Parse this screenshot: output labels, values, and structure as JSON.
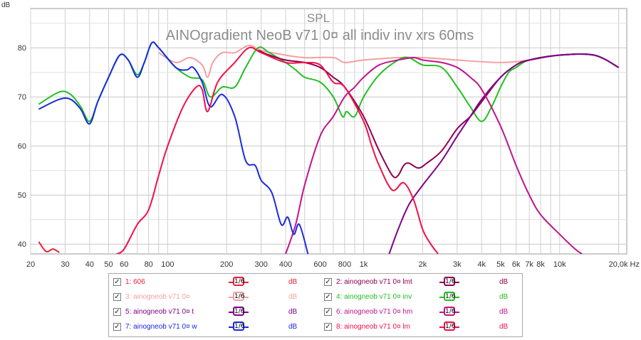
{
  "chart_data": {
    "type": "line",
    "title": "SPL",
    "subtitle": "AINOgradient NeoB v71 0¤ all indiv inv xrs 60ms",
    "ylabel": "dB",
    "xlabel": "Hz",
    "x_scale": "log",
    "xlim": [
      20,
      22000
    ],
    "ylim": [
      38,
      88
    ],
    "y_ticks": [
      40,
      50,
      60,
      70,
      80
    ],
    "x_ticks": [
      {
        "v": 20,
        "label": "20"
      },
      {
        "v": 30,
        "label": "30"
      },
      {
        "v": 40,
        "label": "40"
      },
      {
        "v": 50,
        "label": "50"
      },
      {
        "v": 60,
        "label": "60"
      },
      {
        "v": 80,
        "label": "80"
      },
      {
        "v": 100,
        "label": "100"
      },
      {
        "v": 200,
        "label": "200"
      },
      {
        "v": 300,
        "label": "300"
      },
      {
        "v": 400,
        "label": "400"
      },
      {
        "v": 600,
        "label": "600"
      },
      {
        "v": 800,
        "label": "800"
      },
      {
        "v": 1000,
        "label": "1k"
      },
      {
        "v": 2000,
        "label": "2k"
      },
      {
        "v": 3000,
        "label": "3k"
      },
      {
        "v": 4000,
        "label": "4k"
      },
      {
        "v": 5000,
        "label": "5k"
      },
      {
        "v": 6000,
        "label": "6k"
      },
      {
        "v": 7000,
        "label": "7k"
      },
      {
        "v": 8000,
        "label": "8k"
      },
      {
        "v": 10000,
        "label": "10k"
      },
      {
        "v": 20000,
        "label": "20,0k Hz"
      }
    ],
    "grid": true,
    "series": [
      {
        "name": "3: ainogneob v71 0¤",
        "color": "#f4a0a0",
        "points": [
          [
            90,
            79
          ],
          [
            110,
            77
          ],
          [
            130,
            78
          ],
          [
            150,
            76.5
          ],
          [
            160,
            74
          ],
          [
            170,
            77
          ],
          [
            190,
            79
          ],
          [
            220,
            79
          ],
          [
            260,
            80.5
          ],
          [
            300,
            79.5
          ],
          [
            400,
            78.5
          ],
          [
            500,
            78
          ],
          [
            700,
            78
          ],
          [
            800,
            77
          ],
          [
            1000,
            77.5
          ],
          [
            1500,
            78
          ],
          [
            2000,
            78
          ],
          [
            3000,
            77.5
          ],
          [
            5000,
            77
          ],
          [
            7000,
            77.5
          ],
          [
            10000,
            78.5
          ],
          [
            15000,
            78.5
          ],
          [
            20000,
            76
          ]
        ]
      },
      {
        "name": "4: ainogneob v71 0¤ inv",
        "color": "#22c022",
        "points": [
          [
            22,
            68.5
          ],
          [
            28,
            71
          ],
          [
            32,
            70.5
          ],
          [
            36,
            68
          ],
          [
            40,
            65
          ],
          [
            44,
            69
          ],
          [
            50,
            74
          ],
          [
            57,
            78.5
          ],
          [
            63,
            77.5
          ],
          [
            70,
            74.5
          ],
          [
            76,
            77
          ],
          [
            83,
            81
          ],
          [
            90,
            80
          ],
          [
            110,
            76
          ],
          [
            130,
            74
          ],
          [
            150,
            73.5
          ],
          [
            165,
            70
          ],
          [
            190,
            72
          ],
          [
            220,
            72
          ],
          [
            250,
            76
          ],
          [
            290,
            80
          ],
          [
            330,
            79
          ],
          [
            400,
            77
          ],
          [
            450,
            75.5
          ],
          [
            500,
            74
          ],
          [
            600,
            73
          ],
          [
            700,
            70
          ],
          [
            780,
            66
          ],
          [
            820,
            67
          ],
          [
            900,
            66
          ],
          [
            1000,
            70
          ],
          [
            1200,
            74.5
          ],
          [
            1500,
            77.5
          ],
          [
            1700,
            78
          ],
          [
            2000,
            76.5
          ],
          [
            2500,
            76
          ],
          [
            3000,
            72
          ],
          [
            3500,
            68
          ],
          [
            4000,
            65
          ],
          [
            4500,
            68
          ],
          [
            5000,
            72
          ],
          [
            5500,
            75
          ],
          [
            6000,
            76
          ],
          [
            7000,
            77.5
          ],
          [
            10000,
            78.5
          ],
          [
            15000,
            78.5
          ],
          [
            20000,
            76
          ]
        ]
      },
      {
        "name": "2: ainogneob v71 0¤ lmt",
        "color": "#900050",
        "points": [
          [
            290,
            79.5
          ],
          [
            330,
            78.5
          ],
          [
            400,
            77.5
          ],
          [
            500,
            77
          ],
          [
            600,
            76
          ],
          [
            700,
            74
          ],
          [
            800,
            72
          ],
          [
            1000,
            66
          ],
          [
            1200,
            59
          ],
          [
            1400,
            54
          ],
          [
            1500,
            54
          ],
          [
            1600,
            56
          ],
          [
            1700,
            56.5
          ],
          [
            1900,
            55.5
          ],
          [
            2100,
            56.5
          ],
          [
            2500,
            59
          ],
          [
            3000,
            63.5
          ],
          [
            3500,
            66
          ],
          [
            4000,
            69
          ],
          [
            5000,
            74
          ],
          [
            6000,
            76.5
          ],
          [
            7000,
            77.5
          ],
          [
            10000,
            78.5
          ],
          [
            15000,
            78.5
          ],
          [
            20000,
            76
          ]
        ]
      },
      {
        "name": "5: ainogneob v71 0¤ t",
        "color": "#80008a",
        "points": [
          [
            1350,
            38
          ],
          [
            1500,
            43
          ],
          [
            1700,
            48
          ],
          [
            2000,
            52
          ],
          [
            2500,
            57
          ],
          [
            3000,
            62
          ],
          [
            3500,
            66
          ],
          [
            4000,
            69.5
          ],
          [
            5000,
            74
          ],
          [
            6000,
            76.5
          ],
          [
            7000,
            77.5
          ],
          [
            10000,
            78.5
          ],
          [
            15000,
            78.5
          ],
          [
            20000,
            76
          ]
        ]
      },
      {
        "name": "6: ainogneob v71 0¤ hm",
        "color": "#c0148a",
        "points": [
          [
            400,
            38
          ],
          [
            450,
            44
          ],
          [
            500,
            52
          ],
          [
            600,
            62
          ],
          [
            700,
            66
          ],
          [
            800,
            70
          ],
          [
            900,
            72
          ],
          [
            1000,
            74
          ],
          [
            1200,
            76.5
          ],
          [
            1500,
            77.5
          ],
          [
            1800,
            78
          ],
          [
            2000,
            77.5
          ],
          [
            2500,
            77
          ],
          [
            3000,
            76
          ],
          [
            3500,
            74
          ],
          [
            4000,
            71.5
          ],
          [
            5000,
            64
          ],
          [
            6000,
            56
          ],
          [
            7000,
            50
          ],
          [
            8000,
            46
          ],
          [
            10000,
            42
          ],
          [
            12000,
            39
          ],
          [
            13000,
            38
          ]
        ]
      },
      {
        "name": "7: ainogneob v71 0¤ w",
        "color": "#1a2ae0",
        "points": [
          [
            22,
            67.5
          ],
          [
            28,
            69.5
          ],
          [
            32,
            69.5
          ],
          [
            36,
            67.5
          ],
          [
            40,
            64.5
          ],
          [
            44,
            69
          ],
          [
            50,
            74
          ],
          [
            57,
            78.5
          ],
          [
            63,
            77.5
          ],
          [
            70,
            74
          ],
          [
            76,
            77
          ],
          [
            83,
            81
          ],
          [
            90,
            80
          ],
          [
            110,
            76
          ],
          [
            125,
            75.5
          ],
          [
            135,
            76
          ],
          [
            150,
            73
          ],
          [
            165,
            68
          ],
          [
            190,
            70.5
          ],
          [
            220,
            66
          ],
          [
            250,
            57
          ],
          [
            280,
            56
          ],
          [
            300,
            53
          ],
          [
            340,
            50.5
          ],
          [
            380,
            44
          ],
          [
            410,
            45.5
          ],
          [
            440,
            42
          ],
          [
            470,
            44
          ],
          [
            520,
            38
          ]
        ]
      },
      {
        "name": "8: ainogneob v71 0¤ lm",
        "color": "#f0104a",
        "points": [
          [
            55,
            38
          ],
          [
            60,
            39
          ],
          [
            70,
            44
          ],
          [
            80,
            47
          ],
          [
            90,
            54
          ],
          [
            100,
            60
          ],
          [
            120,
            68
          ],
          [
            140,
            72
          ],
          [
            150,
            71.5
          ],
          [
            160,
            67
          ],
          [
            180,
            73
          ],
          [
            220,
            77
          ],
          [
            260,
            80
          ],
          [
            300,
            79
          ],
          [
            400,
            77
          ],
          [
            500,
            77
          ],
          [
            600,
            76.5
          ],
          [
            700,
            73
          ],
          [
            800,
            72
          ],
          [
            1000,
            65
          ],
          [
            1100,
            60
          ],
          [
            1200,
            56
          ],
          [
            1400,
            51
          ],
          [
            1600,
            52.5
          ],
          [
            1800,
            49
          ],
          [
            2000,
            43
          ],
          [
            2200,
            40
          ],
          [
            2400,
            38
          ]
        ]
      },
      {
        "name": "1: 606",
        "color": "#e8203a",
        "points": [
          [
            22,
            40.5
          ],
          [
            24,
            38.5
          ],
          [
            26,
            39
          ],
          [
            28,
            38.3
          ]
        ]
      }
    ],
    "legend": {
      "placement": "bottom",
      "items": [
        {
          "label": "1: 606",
          "color": "#e8203a",
          "checked": true,
          "smoothing": "1/6",
          "unit": "dB"
        },
        {
          "label": "2: ainogneob v71 0¤ lmt",
          "color": "#900050",
          "checked": true,
          "smoothing": "1/6",
          "unit": "dB"
        },
        {
          "label": "3: ainogneob v71 0¤",
          "color": "#f4a0a0",
          "checked": true,
          "smoothing": "1/6",
          "unit": "dB"
        },
        {
          "label": "4: ainogneob v71 0¤ inv",
          "color": "#22c022",
          "checked": true,
          "smoothing": "1/6",
          "unit": "dB"
        },
        {
          "label": "5: ainogneob v71 0¤ t",
          "color": "#80008a",
          "checked": true,
          "smoothing": "1/6",
          "unit": "dB"
        },
        {
          "label": "6: ainogneob v71 0¤ hm",
          "color": "#c0148a",
          "checked": true,
          "smoothing": "1/6",
          "unit": "dB"
        },
        {
          "label": "7: ainogneob v71 0¤ w",
          "color": "#1a2ae0",
          "checked": true,
          "smoothing": "1/6",
          "unit": "dB"
        },
        {
          "label": "8: ainogneob v71 0¤ lm",
          "color": "#f0104a",
          "checked": true,
          "smoothing": "1/6",
          "unit": "dB"
        }
      ]
    }
  }
}
